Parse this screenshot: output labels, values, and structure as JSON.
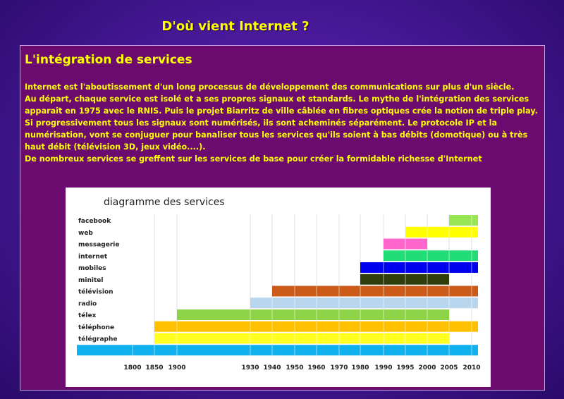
{
  "page": {
    "title": "D'où vient Internet ?"
  },
  "section": {
    "title": "L'intégration de services",
    "paragraphs": [
      "Internet est l'aboutissement d'un long processus de développement des communications sur plus d'un siècle.",
      "Au départ, chaque service est isolé et a ses propres signaux et standards. Le mythe de l'intégration des services apparaît en 1975 avec le RNIS. Puis le projet Biarritz de ville câblée en fibres optiques crée la notion de triple play. Si progressivement tous les signaux sont numérisés, ils sont acheminés séparément. Le protocole IP et la numérisation, vont se conjuguer pour banaliser tous les services qu'ils soient à bas débits (domotique) ou à très haut débit (télévision 3D, jeux vidéo....).",
      "De nombreux services se greffent sur les services de base pour créer la formidable richesse d'Internet"
    ]
  },
  "chart_data": {
    "type": "bar",
    "orientation": "horizontal-timeline",
    "title": "diagramme des services",
    "x_ticks": [
      "1800",
      "1850",
      "1900",
      "1930",
      "1940",
      "1950",
      "1960",
      "1970",
      "1980",
      "1990",
      "1995",
      "2000",
      "2005",
      "2010"
    ],
    "series": [
      {
        "name": "facebook",
        "start": "2005",
        "end": "2010",
        "color": "#99e655"
      },
      {
        "name": "web",
        "start": "1995",
        "end": "2010",
        "color": "#ffff00"
      },
      {
        "name": "messagerie",
        "start": "1990",
        "end": "2000",
        "color": "#ff66cc"
      },
      {
        "name": "internet",
        "start": "1990",
        "end": "2010",
        "color": "#22dd77"
      },
      {
        "name": "mobiles",
        "start": "1980",
        "end": "2010",
        "color": "#0000ee"
      },
      {
        "name": "minitel",
        "start": "1980",
        "end": "2005",
        "color": "#2e3d0a"
      },
      {
        "name": "télévision",
        "start": "1940",
        "end": "2010",
        "color": "#cc5a18"
      },
      {
        "name": "radio",
        "start": "1930",
        "end": "2010",
        "color": "#b8d6ee"
      },
      {
        "name": "télex",
        "start": "1900",
        "end": "2005",
        "color": "#8ed448"
      },
      {
        "name": "téléphone",
        "start": "1850",
        "end": "2010",
        "color": "#ffc000"
      },
      {
        "name": "télégraphe",
        "start": "1850",
        "end": "2005",
        "color": "#ffff22"
      },
      {
        "name": "",
        "start": "1800",
        "end": "2010",
        "color": "#11b0ee"
      }
    ]
  }
}
